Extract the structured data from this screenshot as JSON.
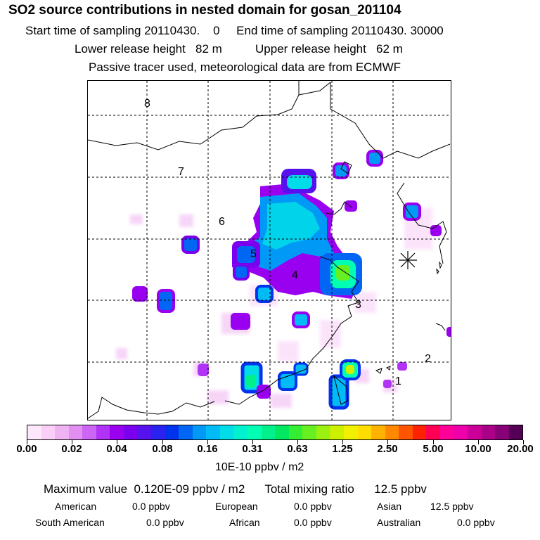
{
  "header": {
    "title": "SO2 source contributions in nested domain for gosan_201104",
    "sampling_line": "Start time of sampling 20110430.    0     End time of sampling 20110430. 30000",
    "height_line": "Lower release height   82 m          Upper release height   62 m",
    "tracer_line": "Passive tracer used, meteorological data are from ECMWF"
  },
  "map": {
    "region_labels": [
      "1",
      "2",
      "3",
      "4",
      "5",
      "6",
      "7",
      "8"
    ],
    "receptor_marker": "receptor-star-icon"
  },
  "colorbar": {
    "colors": [
      "#fde7fb",
      "#f9cff7",
      "#f0b3f2",
      "#e38ff2",
      "#cc66f5",
      "#b133f5",
      "#9900f0",
      "#7a00ee",
      "#5511ee",
      "#2a22ee",
      "#0033ee",
      "#0066f3",
      "#0099f6",
      "#00bbf5",
      "#00dde8",
      "#00f0d0",
      "#00ffb2",
      "#00f08c",
      "#00e860",
      "#33ee33",
      "#66f022",
      "#99f011",
      "#ccf000",
      "#f0f000",
      "#ffdd00",
      "#ffb300",
      "#ff8800",
      "#ff5500",
      "#ff2200",
      "#ff0055",
      "#ff0099",
      "#ee00aa",
      "#cc0099",
      "#aa0088",
      "#880077",
      "#550055"
    ],
    "tick_labels": [
      "0.00",
      "0.02",
      "0.04",
      "0.08",
      "0.16",
      "0.31",
      "0.63",
      "1.25",
      "2.50",
      "5.00",
      "10.00",
      "20.00"
    ],
    "units": "10E-10 ppbv / m2"
  },
  "summary": {
    "max_line": "Maximum value  0.120E-09 ppbv / m2      Total mixing ratio      12.5 ppbv",
    "regions": [
      {
        "name": "American",
        "value": "0.0 ppbv"
      },
      {
        "name": "European",
        "value": "0.0 ppbv"
      },
      {
        "name": "Asian",
        "value": "12.5 ppbv"
      },
      {
        "name": "South American",
        "value": "0.0 ppbv"
      },
      {
        "name": "African",
        "value": "0.0 ppbv"
      },
      {
        "name": "Australian",
        "value": "0.0 ppbv"
      }
    ]
  }
}
